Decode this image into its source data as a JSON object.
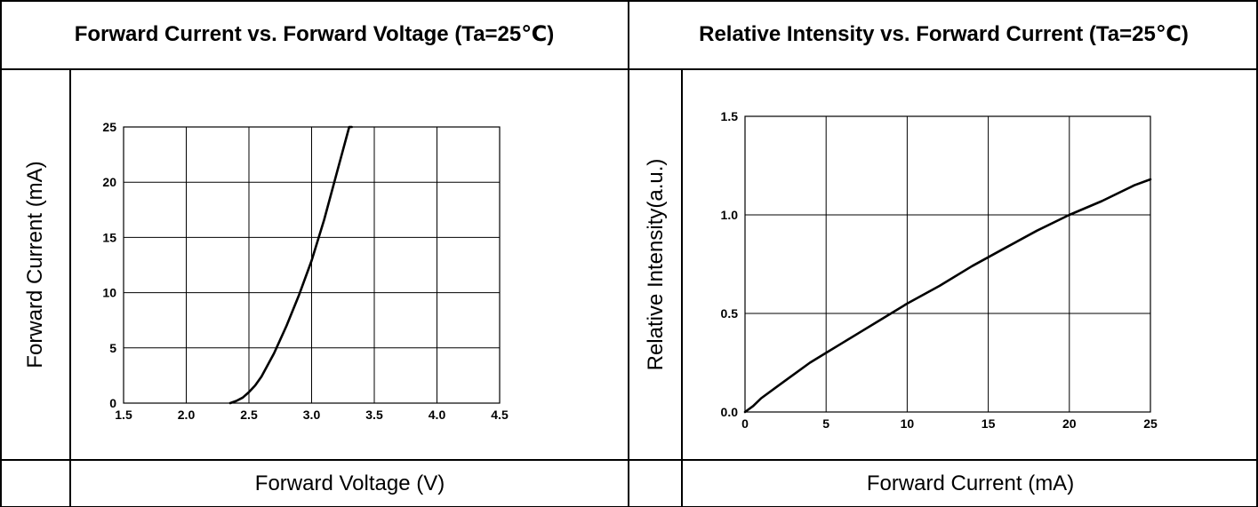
{
  "chart_data": [
    {
      "type": "line",
      "title": "Forward Current vs. Forward Voltage (Ta=25℃)",
      "xlabel": "Forward Voltage (V)",
      "ylabel": "Forward Current (mA)",
      "xlim": [
        1.5,
        4.5
      ],
      "ylim": [
        0,
        25
      ],
      "xticks": [
        "1.5",
        "2.0",
        "2.5",
        "3.0",
        "3.5",
        "4.0",
        "4.5"
      ],
      "yticks": [
        "0",
        "5",
        "10",
        "15",
        "20",
        "25"
      ],
      "grid": true,
      "series": [
        {
          "x": [
            2.35,
            2.4,
            2.45,
            2.5,
            2.55,
            2.6,
            2.7,
            2.8,
            2.9,
            3.0,
            3.1,
            3.2,
            3.3,
            3.32
          ],
          "y": [
            0.0,
            0.2,
            0.5,
            1.0,
            1.6,
            2.4,
            4.5,
            7.0,
            9.8,
            12.9,
            16.6,
            20.8,
            25.0,
            25.0
          ]
        }
      ]
    },
    {
      "type": "line",
      "title": "Relative Intensity vs. Forward Current (Ta=25℃)",
      "xlabel": "Forward Current (mA)",
      "ylabel": "Relative Intensity(a.u.)",
      "xlim": [
        0,
        25
      ],
      "ylim": [
        0.0,
        1.5
      ],
      "xticks": [
        "0",
        "5",
        "10",
        "15",
        "20",
        "25"
      ],
      "yticks": [
        "0.0",
        "0.5",
        "1.0",
        "1.5"
      ],
      "grid": true,
      "series": [
        {
          "x": [
            0,
            0.5,
            1,
            2,
            3,
            4,
            5,
            6,
            7,
            8,
            9,
            10,
            12,
            14,
            16,
            18,
            20,
            22,
            24,
            25
          ],
          "y": [
            0.0,
            0.03,
            0.07,
            0.13,
            0.19,
            0.25,
            0.3,
            0.35,
            0.4,
            0.45,
            0.5,
            0.55,
            0.64,
            0.74,
            0.83,
            0.92,
            1.0,
            1.07,
            1.15,
            1.18
          ]
        }
      ]
    }
  ]
}
